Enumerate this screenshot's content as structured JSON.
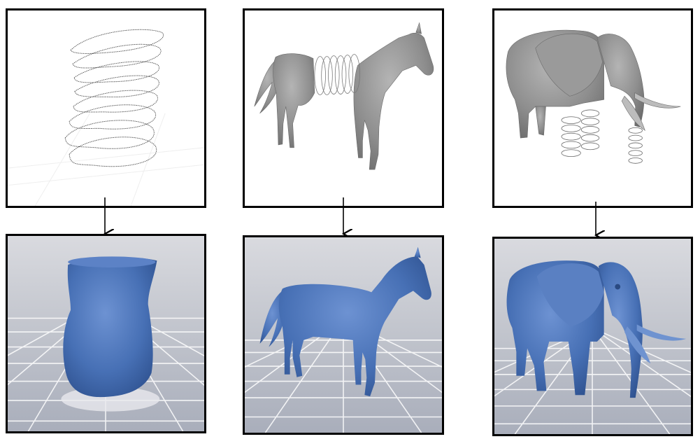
{
  "diagram": {
    "columns": [
      {
        "input": "slice-contours-input",
        "output": "reconstructed-vase-output"
      },
      {
        "input": "partial-horse-input",
        "output": "completed-horse-output"
      },
      {
        "input": "partial-elephant-input",
        "output": "completed-elephant-output"
      }
    ],
    "colors": {
      "frame": "#000000",
      "input_mesh": "#8c8c8c",
      "output_mesh": "#4a72b8",
      "floor": "#b9bcc6",
      "grid": "#ffffff"
    }
  }
}
